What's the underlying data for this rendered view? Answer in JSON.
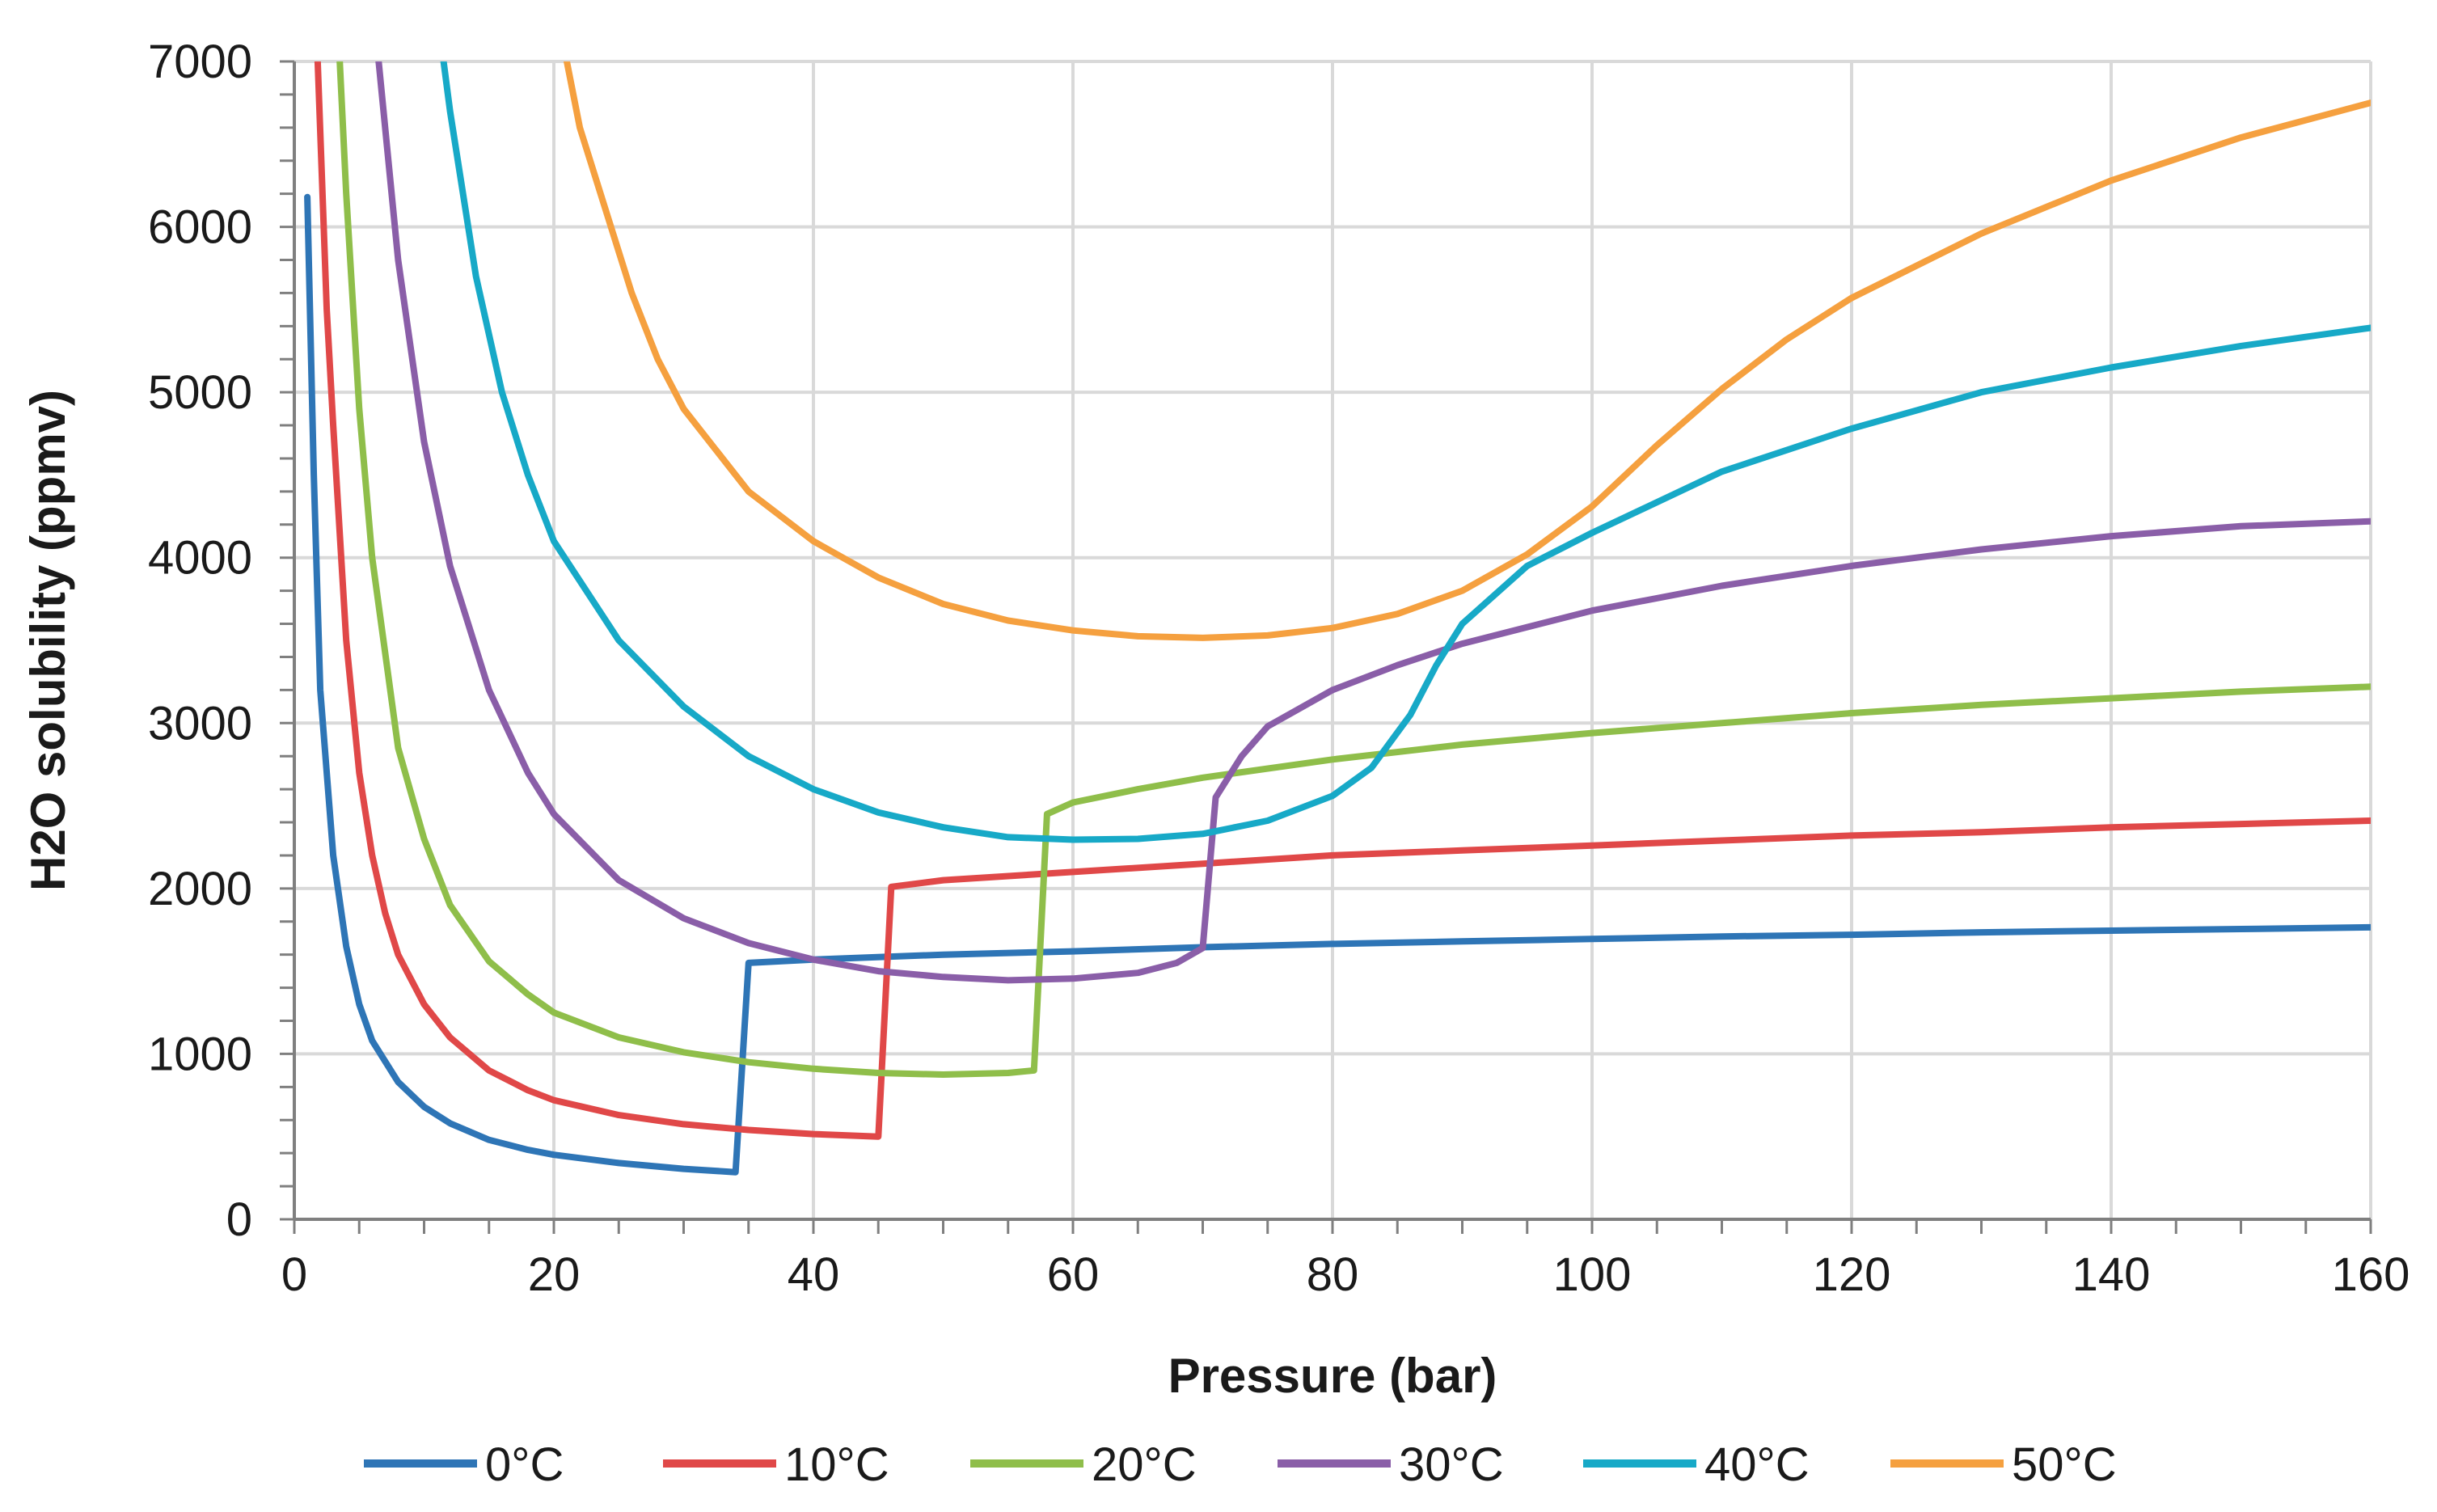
{
  "chart_data": {
    "type": "line",
    "title": "",
    "xlabel": "Pressure (bar)",
    "ylabel": "H2O solubility (ppmv)",
    "xlim": [
      0,
      160
    ],
    "ylim": [
      0,
      7000
    ],
    "x_ticks": [
      0,
      20,
      40,
      60,
      80,
      100,
      120,
      140,
      160
    ],
    "y_ticks": [
      0,
      1000,
      2000,
      3000,
      4000,
      5000,
      6000,
      7000
    ],
    "x_tick_labels": [
      "0",
      "20",
      "40",
      "60",
      "80",
      "100",
      "120",
      "140",
      "160"
    ],
    "y_tick_labels": [
      "0",
      "1000",
      "2000",
      "3000",
      "4000",
      "5000",
      "6000",
      "7000"
    ],
    "x_minor_step": 5,
    "y_minor_step": 200,
    "grid": true,
    "legend_position": "bottom",
    "series": [
      {
        "name": "0°C",
        "color": "#2e75b6",
        "points": [
          [
            1,
            6180
          ],
          [
            1.5,
            4500
          ],
          [
            2,
            3200
          ],
          [
            3,
            2200
          ],
          [
            4,
            1650
          ],
          [
            5,
            1300
          ],
          [
            6,
            1080
          ],
          [
            8,
            830
          ],
          [
            10,
            680
          ],
          [
            12,
            580
          ],
          [
            15,
            480
          ],
          [
            18,
            420
          ],
          [
            20,
            390
          ],
          [
            25,
            340
          ],
          [
            30,
            305
          ],
          [
            34,
            285
          ],
          [
            35,
            1550
          ],
          [
            40,
            1570
          ],
          [
            50,
            1600
          ],
          [
            60,
            1620
          ],
          [
            70,
            1645
          ],
          [
            80,
            1665
          ],
          [
            90,
            1680
          ],
          [
            100,
            1695
          ],
          [
            110,
            1710
          ],
          [
            120,
            1720
          ],
          [
            130,
            1735
          ],
          [
            140,
            1745
          ],
          [
            150,
            1755
          ],
          [
            160,
            1765
          ]
        ]
      },
      {
        "name": "10°C",
        "color": "#e04848",
        "points": [
          [
            1.8,
            7000
          ],
          [
            2.5,
            5500
          ],
          [
            3,
            4800
          ],
          [
            4,
            3500
          ],
          [
            5,
            2700
          ],
          [
            6,
            2200
          ],
          [
            7,
            1850
          ],
          [
            8,
            1600
          ],
          [
            10,
            1300
          ],
          [
            12,
            1100
          ],
          [
            15,
            900
          ],
          [
            18,
            780
          ],
          [
            20,
            720
          ],
          [
            25,
            630
          ],
          [
            30,
            575
          ],
          [
            35,
            540
          ],
          [
            40,
            515
          ],
          [
            45,
            500
          ],
          [
            46,
            2010
          ],
          [
            50,
            2050
          ],
          [
            60,
            2100
          ],
          [
            70,
            2150
          ],
          [
            80,
            2200
          ],
          [
            90,
            2230
          ],
          [
            100,
            2260
          ],
          [
            110,
            2290
          ],
          [
            120,
            2320
          ],
          [
            130,
            2340
          ],
          [
            140,
            2370
          ],
          [
            150,
            2390
          ],
          [
            160,
            2410
          ]
        ]
      },
      {
        "name": "20°C",
        "color": "#8fbe4a",
        "points": [
          [
            3.5,
            7000
          ],
          [
            4,
            6200
          ],
          [
            5,
            4900
          ],
          [
            6,
            4000
          ],
          [
            8,
            2850
          ],
          [
            10,
            2300
          ],
          [
            12,
            1900
          ],
          [
            15,
            1560
          ],
          [
            18,
            1360
          ],
          [
            20,
            1250
          ],
          [
            25,
            1100
          ],
          [
            30,
            1010
          ],
          [
            35,
            950
          ],
          [
            40,
            910
          ],
          [
            45,
            885
          ],
          [
            50,
            875
          ],
          [
            55,
            885
          ],
          [
            57,
            900
          ],
          [
            58,
            2450
          ],
          [
            60,
            2520
          ],
          [
            65,
            2600
          ],
          [
            70,
            2670
          ],
          [
            80,
            2780
          ],
          [
            90,
            2870
          ],
          [
            100,
            2940
          ],
          [
            110,
            3000
          ],
          [
            120,
            3060
          ],
          [
            130,
            3110
          ],
          [
            140,
            3150
          ],
          [
            150,
            3190
          ],
          [
            160,
            3220
          ]
        ]
      },
      {
        "name": "30°C",
        "color": "#8a5ea8",
        "points": [
          [
            6.5,
            7000
          ],
          [
            8,
            5800
          ],
          [
            10,
            4700
          ],
          [
            12,
            3950
          ],
          [
            15,
            3200
          ],
          [
            18,
            2700
          ],
          [
            20,
            2450
          ],
          [
            25,
            2050
          ],
          [
            30,
            1820
          ],
          [
            35,
            1670
          ],
          [
            40,
            1570
          ],
          [
            45,
            1500
          ],
          [
            50,
            1465
          ],
          [
            55,
            1445
          ],
          [
            60,
            1455
          ],
          [
            65,
            1490
          ],
          [
            68,
            1550
          ],
          [
            70,
            1640
          ],
          [
            71,
            2550
          ],
          [
            73,
            2800
          ],
          [
            75,
            2980
          ],
          [
            80,
            3200
          ],
          [
            85,
            3350
          ],
          [
            90,
            3480
          ],
          [
            100,
            3680
          ],
          [
            110,
            3830
          ],
          [
            120,
            3950
          ],
          [
            130,
            4050
          ],
          [
            140,
            4130
          ],
          [
            150,
            4190
          ],
          [
            160,
            4220
          ]
        ]
      },
      {
        "name": "40°C",
        "color": "#17a9c7",
        "points": [
          [
            11.5,
            7000
          ],
          [
            12,
            6700
          ],
          [
            14,
            5700
          ],
          [
            16,
            5000
          ],
          [
            18,
            4500
          ],
          [
            20,
            4100
          ],
          [
            25,
            3500
          ],
          [
            30,
            3100
          ],
          [
            35,
            2800
          ],
          [
            40,
            2600
          ],
          [
            45,
            2460
          ],
          [
            50,
            2370
          ],
          [
            55,
            2310
          ],
          [
            60,
            2295
          ],
          [
            65,
            2300
          ],
          [
            70,
            2330
          ],
          [
            75,
            2410
          ],
          [
            80,
            2560
          ],
          [
            83,
            2730
          ],
          [
            86,
            3050
          ],
          [
            88,
            3350
          ],
          [
            90,
            3600
          ],
          [
            95,
            3950
          ],
          [
            100,
            4150
          ],
          [
            110,
            4520
          ],
          [
            120,
            4780
          ],
          [
            130,
            5000
          ],
          [
            140,
            5150
          ],
          [
            150,
            5280
          ],
          [
            160,
            5390
          ]
        ]
      },
      {
        "name": "50°C",
        "color": "#f5a03f",
        "points": [
          [
            21,
            7000
          ],
          [
            22,
            6600
          ],
          [
            24,
            6100
          ],
          [
            26,
            5600
          ],
          [
            28,
            5200
          ],
          [
            30,
            4900
          ],
          [
            35,
            4400
          ],
          [
            40,
            4100
          ],
          [
            45,
            3880
          ],
          [
            50,
            3720
          ],
          [
            55,
            3620
          ],
          [
            60,
            3560
          ],
          [
            65,
            3525
          ],
          [
            70,
            3515
          ],
          [
            75,
            3530
          ],
          [
            80,
            3575
          ],
          [
            85,
            3660
          ],
          [
            90,
            3800
          ],
          [
            95,
            4020
          ],
          [
            100,
            4310
          ],
          [
            105,
            4680
          ],
          [
            110,
            5020
          ],
          [
            115,
            5320
          ],
          [
            120,
            5570
          ],
          [
            130,
            5960
          ],
          [
            140,
            6280
          ],
          [
            150,
            6540
          ],
          [
            160,
            6750
          ]
        ]
      }
    ]
  }
}
